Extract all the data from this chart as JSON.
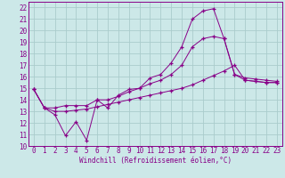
{
  "xlabel": "Windchill (Refroidissement éolien,°C)",
  "background_color": "#cce8e8",
  "grid_color": "#aacccc",
  "line_color": "#880088",
  "xlim": [
    -0.5,
    23.5
  ],
  "ylim": [
    10,
    22.5
  ],
  "yticks": [
    10,
    11,
    12,
    13,
    14,
    15,
    16,
    17,
    18,
    19,
    20,
    21,
    22
  ],
  "xticks": [
    0,
    1,
    2,
    3,
    4,
    5,
    6,
    7,
    8,
    9,
    10,
    11,
    12,
    13,
    14,
    15,
    16,
    17,
    18,
    19,
    20,
    21,
    22,
    23
  ],
  "series1_x": [
    0,
    1,
    2,
    3,
    4,
    5,
    6,
    7,
    8,
    9,
    10,
    11,
    12,
    13,
    14,
    15,
    16,
    17,
    18,
    19,
    20,
    21,
    22,
    23
  ],
  "series1_y": [
    14.9,
    13.3,
    12.7,
    10.9,
    12.1,
    10.5,
    14.0,
    13.3,
    14.4,
    14.9,
    15.0,
    15.9,
    16.2,
    17.2,
    18.6,
    21.0,
    21.7,
    21.9,
    19.3,
    16.2,
    15.7,
    15.6,
    15.5,
    15.5
  ],
  "series2_x": [
    0,
    1,
    2,
    3,
    4,
    5,
    6,
    7,
    8,
    9,
    10,
    11,
    12,
    13,
    14,
    15,
    16,
    17,
    18,
    19,
    20,
    21,
    22,
    23
  ],
  "series2_y": [
    14.9,
    13.3,
    13.3,
    13.5,
    13.5,
    13.5,
    14.0,
    14.0,
    14.3,
    14.7,
    15.0,
    15.4,
    15.7,
    16.2,
    17.0,
    18.6,
    19.3,
    19.5,
    19.3,
    16.2,
    15.9,
    15.8,
    15.7,
    15.6
  ],
  "series3_x": [
    0,
    1,
    2,
    3,
    4,
    5,
    6,
    7,
    8,
    9,
    10,
    11,
    12,
    13,
    14,
    15,
    16,
    17,
    18,
    19,
    20,
    21,
    22,
    23
  ],
  "series3_y": [
    14.9,
    13.3,
    13.0,
    13.0,
    13.1,
    13.2,
    13.4,
    13.6,
    13.8,
    14.0,
    14.2,
    14.4,
    14.6,
    14.8,
    15.0,
    15.3,
    15.7,
    16.1,
    16.5,
    17.0,
    15.7,
    15.6,
    15.5,
    15.5
  ]
}
